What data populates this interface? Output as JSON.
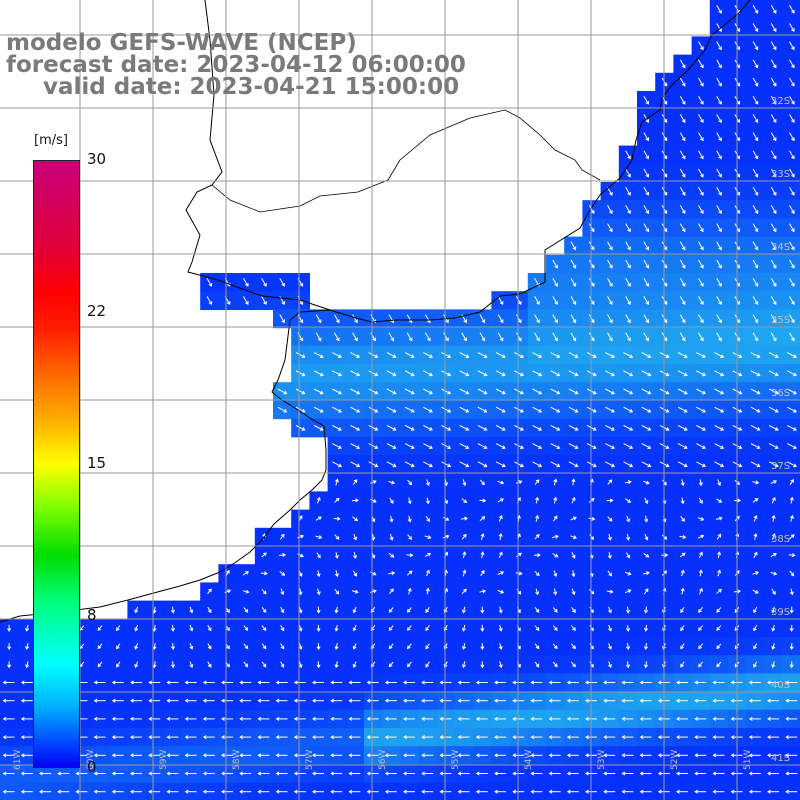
{
  "titles": {
    "line1": "modelo GEFS-WAVE (NCEP)",
    "line2": "forecast date: 2023-04-12 06:00:00",
    "line3": "valid date: 2023-04-21 15:00:00"
  },
  "colorbar": {
    "unit": "[m/s]",
    "ticks": [
      {
        "value": 30,
        "label": "30"
      },
      {
        "value": 22,
        "label": "22"
      },
      {
        "value": 15,
        "label": "15"
      },
      {
        "value": 8,
        "label": "8"
      },
      {
        "value": 0,
        "label": "0"
      }
    ],
    "min": 0,
    "max": 30
  },
  "map": {
    "lat_labels": [
      "32S",
      "33S",
      "34S",
      "35S",
      "36S",
      "37S",
      "38S",
      "39S",
      "40S",
      "41S"
    ],
    "lon_labels": [
      "61W",
      "60W",
      "59W",
      "58W",
      "57W",
      "56W",
      "55W",
      "54W",
      "53W",
      "52W",
      "51W"
    ],
    "land_color": "#ffffff",
    "coast_color": "#000000",
    "grid_color": "#9a9a9a",
    "arrow_color": "#ffffff",
    "field_colors": {
      "low": "#0010ff",
      "mid": "#0a6af0",
      "high": "#22c6ee"
    }
  }
}
